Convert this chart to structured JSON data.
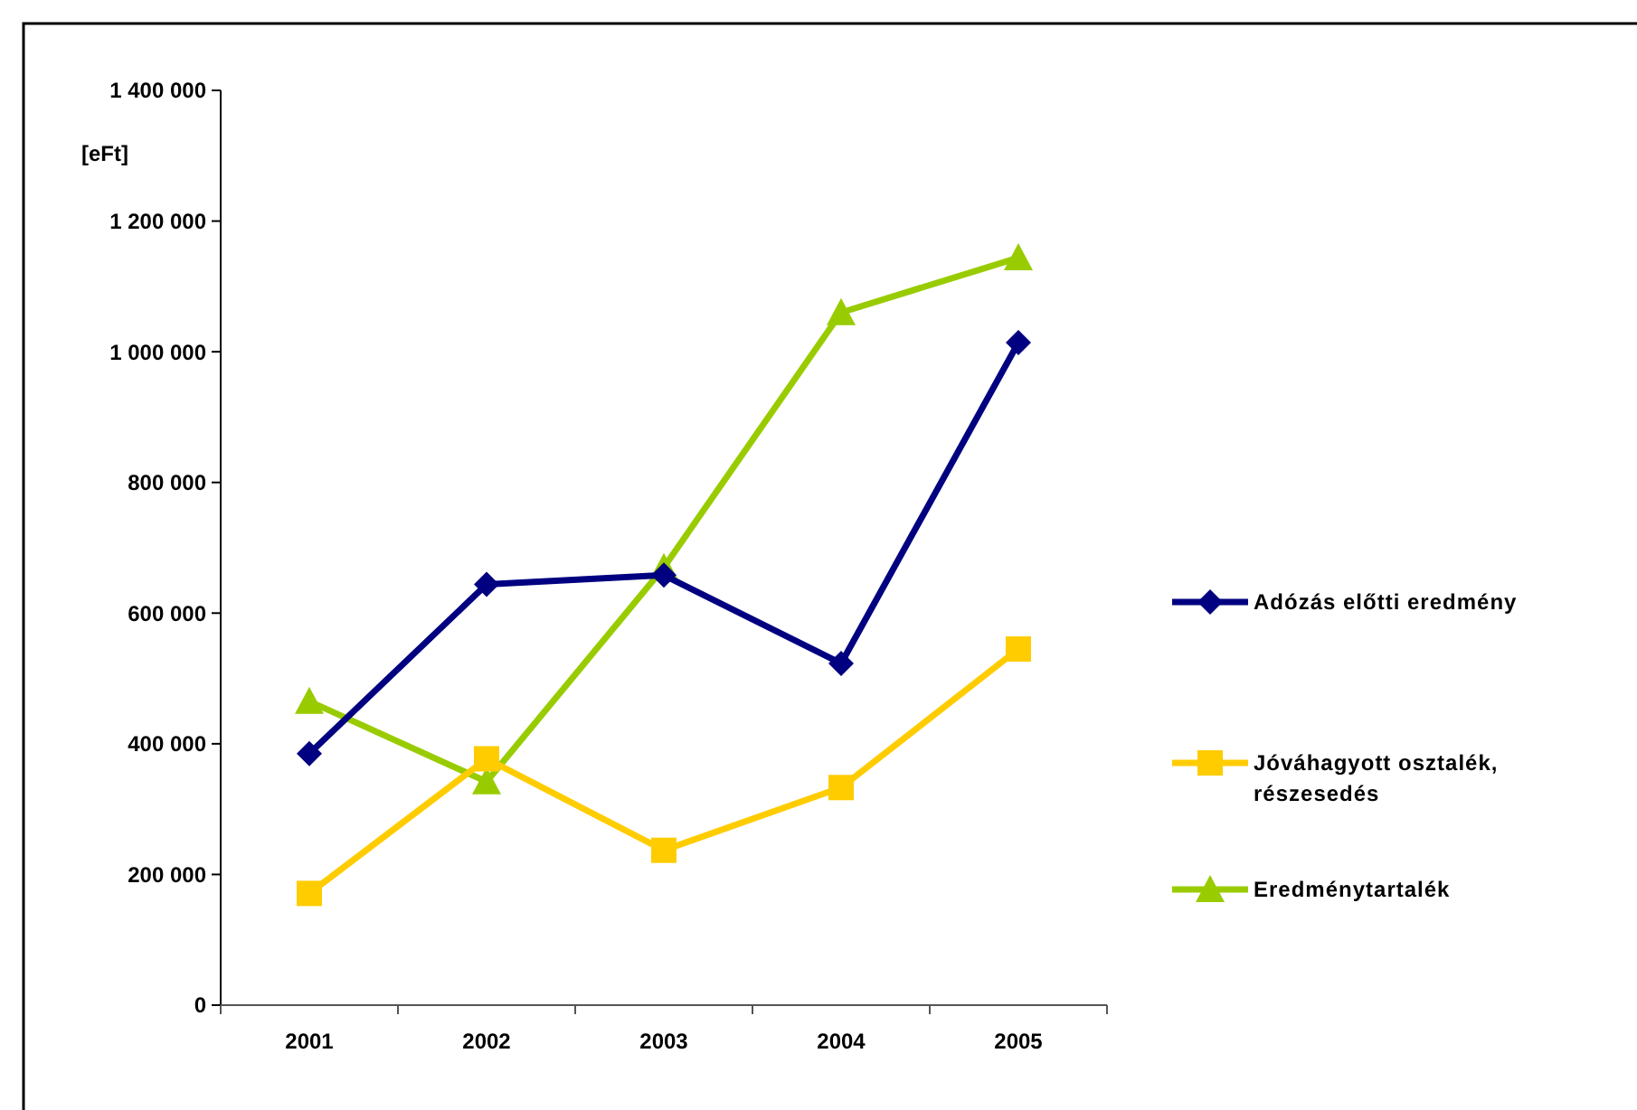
{
  "chart_data": {
    "type": "line",
    "ylabel": "[eFt]",
    "categories": [
      "2001",
      "2002",
      "2003",
      "2004",
      "2005"
    ],
    "series": [
      {
        "name": "Adózás előtti eredmény",
        "color": "#000080",
        "marker": "diamond",
        "values": [
          385000,
          644000,
          658000,
          523000,
          1014000
        ]
      },
      {
        "name": "Jóváhagyott osztalék, részesedés",
        "color": "#ffcc00",
        "marker": "square",
        "values": [
          171000,
          377000,
          237000,
          333000,
          545000
        ]
      },
      {
        "name": "Eredménytartalék",
        "color": "#99cc00",
        "marker": "triangle",
        "values": [
          465000,
          342000,
          670000,
          1060000,
          1144000
        ]
      }
    ],
    "ylim": [
      0,
      1400000
    ],
    "yticks": [
      {
        "value": 0,
        "label": "0"
      },
      {
        "value": 200000,
        "label": "200 000"
      },
      {
        "value": 400000,
        "label": "400 000"
      },
      {
        "value": 600000,
        "label": "600 000"
      },
      {
        "value": 800000,
        "label": "800 000"
      },
      {
        "value": 1000000,
        "label": "1 000 000"
      },
      {
        "value": 1200000,
        "label": "1 200 000"
      },
      {
        "value": 1400000,
        "label": "1 400 000"
      }
    ],
    "grid": false,
    "legend": "right"
  }
}
